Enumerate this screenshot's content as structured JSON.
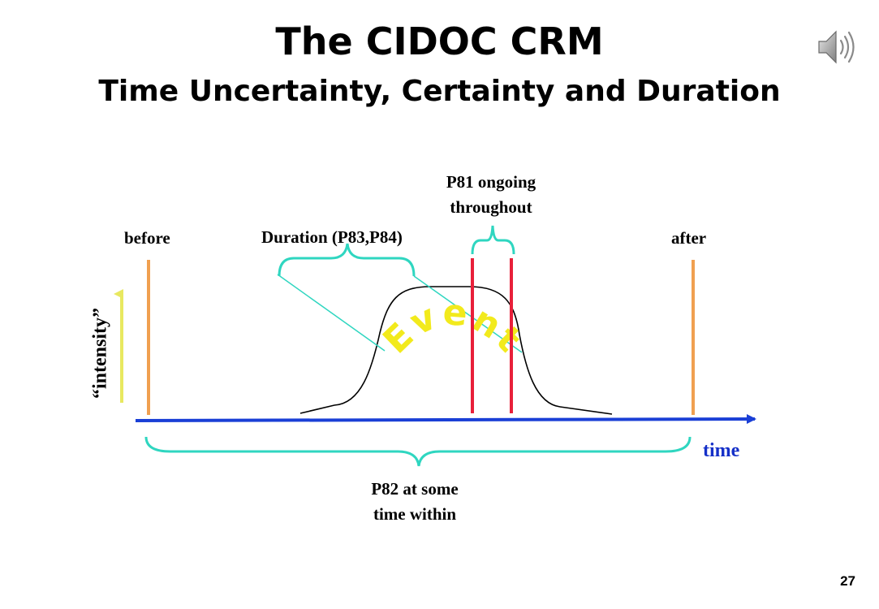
{
  "slide": {
    "title": "The CIDOC CRM",
    "subtitle": "Time Uncertainty, Certainty and Duration",
    "page_number": "27"
  },
  "diagram": {
    "labels": {
      "before": "before",
      "after": "after",
      "duration": "Duration (P83,P84)",
      "p81_line1": "P81 ongoing",
      "p81_line2": "throughout",
      "p82_line1": "P82 at some",
      "p82_line2": "time within",
      "time": "time",
      "intensity": "“intensity”",
      "event": "Event"
    },
    "colors": {
      "time_axis": "#1a3fd6",
      "before_after_markers": "#f0a050",
      "brace": "#2fd6c0",
      "throughout_markers": "#e8203a",
      "intensity_arrow": "#e8e860",
      "event_text": "#f2ea1c",
      "curve": "#000000"
    },
    "icons": {
      "sound": "speaker-icon"
    }
  }
}
